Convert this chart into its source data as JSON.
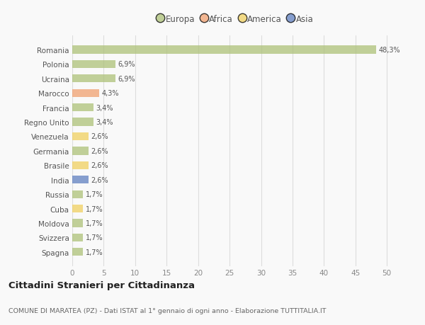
{
  "countries": [
    "Romania",
    "Polonia",
    "Ucraina",
    "Marocco",
    "Francia",
    "Regno Unito",
    "Venezuela",
    "Germania",
    "Brasile",
    "India",
    "Russia",
    "Cuba",
    "Moldova",
    "Svizzera",
    "Spagna"
  ],
  "values": [
    48.3,
    6.9,
    6.9,
    4.3,
    3.4,
    3.4,
    2.6,
    2.6,
    2.6,
    2.6,
    1.7,
    1.7,
    1.7,
    1.7,
    1.7
  ],
  "labels": [
    "48,3%",
    "6,9%",
    "6,9%",
    "4,3%",
    "3,4%",
    "3,4%",
    "2,6%",
    "2,6%",
    "2,6%",
    "2,6%",
    "1,7%",
    "1,7%",
    "1,7%",
    "1,7%",
    "1,7%"
  ],
  "continents": [
    "Europa",
    "Europa",
    "Europa",
    "Africa",
    "Europa",
    "Europa",
    "America",
    "Europa",
    "America",
    "Asia",
    "Europa",
    "America",
    "Europa",
    "Europa",
    "Europa"
  ],
  "continent_colors": {
    "Europa": "#adc178",
    "Africa": "#f0a070",
    "America": "#f0d060",
    "Asia": "#6080c0"
  },
  "legend_order": [
    "Europa",
    "Africa",
    "America",
    "Asia"
  ],
  "legend_colors": [
    "#adc178",
    "#f0a070",
    "#f0d060",
    "#6080c0"
  ],
  "xlim": [
    0,
    52
  ],
  "xticks": [
    0,
    5,
    10,
    15,
    20,
    25,
    30,
    35,
    40,
    45,
    50
  ],
  "title": "Cittadini Stranieri per Cittadinanza",
  "subtitle": "COMUNE DI MARATEA (PZ) - Dati ISTAT al 1° gennaio di ogni anno - Elaborazione TUTTITALIA.IT",
  "bg_color": "#f9f9f9",
  "grid_color": "#dddddd",
  "bar_height": 0.55,
  "bar_alpha": 0.75
}
